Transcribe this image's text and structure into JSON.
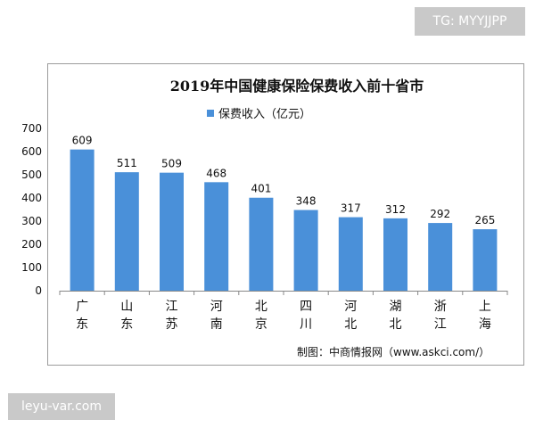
{
  "header_tag": "TG: MYYJJPP",
  "footer_tag": "leyu-var.com",
  "credit": "制图：中商情报网（www.askci.com/）",
  "colors": {
    "bar": "#4a90d9",
    "axis": "#888888",
    "text": "#111111",
    "tag_bg": "#c9c9c9"
  },
  "chart_data": {
    "type": "bar",
    "title": "2019年中国健康保险保费收入前十省市",
    "legend": "保费收入（亿元）",
    "legend_position": "top-center",
    "categories": [
      "广东",
      "山东",
      "江苏",
      "河南",
      "北京",
      "四川",
      "河北",
      "湖北",
      "浙江",
      "上海"
    ],
    "values": [
      609,
      511,
      509,
      468,
      401,
      348,
      317,
      312,
      292,
      265
    ],
    "ylim": [
      0,
      700
    ],
    "yticks": [
      0,
      100,
      200,
      300,
      400,
      500,
      600,
      700
    ],
    "grid": false
  }
}
